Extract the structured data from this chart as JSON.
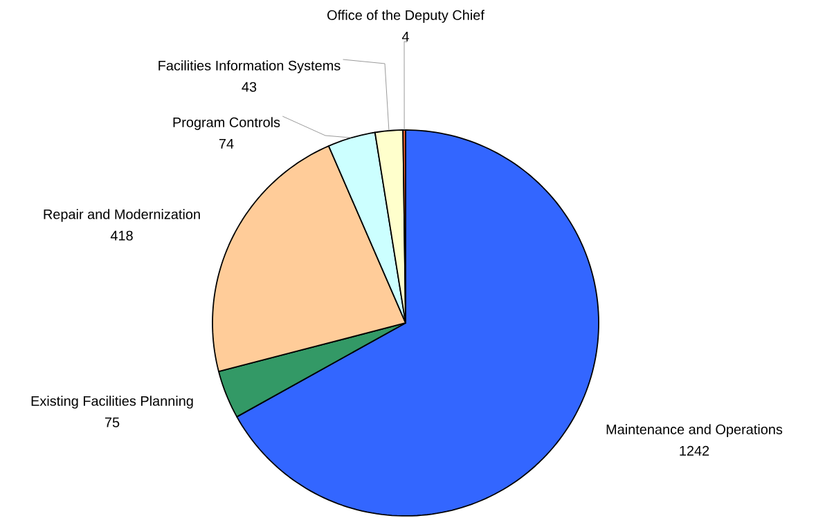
{
  "chart_data": {
    "type": "pie",
    "categories": [
      "Maintenance and Operations",
      "Existing Facilities Planning",
      "Repair and Modernization",
      "Program Controls",
      "Facilities Information Systems",
      "Office of the Deputy Chief"
    ],
    "values": [
      1242,
      75,
      418,
      74,
      43,
      4
    ],
    "colors": [
      "#3366ff",
      "#339966",
      "#ffcc99",
      "#ccffff",
      "#ffffcc",
      "#ff6633"
    ],
    "data_labels": true
  }
}
